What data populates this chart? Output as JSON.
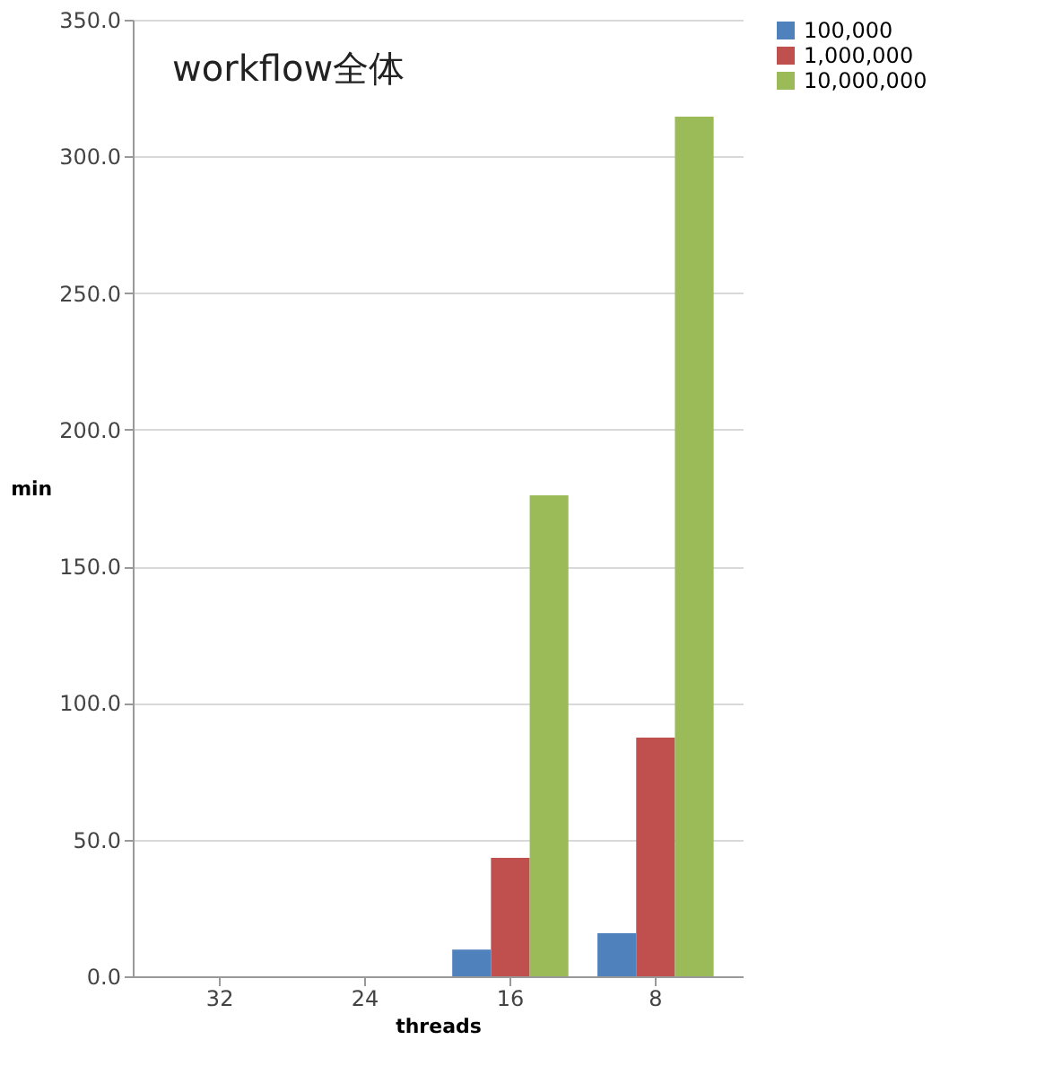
{
  "chart_data": {
    "type": "bar",
    "title": "workflow全体",
    "xlabel": "threads",
    "ylabel": "min",
    "categories": [
      "32",
      "24",
      "16",
      "8"
    ],
    "series": [
      {
        "name": "100,000",
        "color": "#4f81bd",
        "values": [
          0,
          0,
          9.8,
          15.8
        ]
      },
      {
        "name": "1,000,000",
        "color": "#c0504d",
        "values": [
          0,
          0,
          43.3,
          87.3
        ]
      },
      {
        "name": "10,000,000",
        "color": "#9bbb59",
        "values": [
          0,
          0,
          176,
          314.5
        ]
      }
    ],
    "ylim": [
      0,
      350
    ],
    "yticks": [
      {
        "value": 0,
        "label": "0.0"
      },
      {
        "value": 50,
        "label": "50.0"
      },
      {
        "value": 100,
        "label": "100.0"
      },
      {
        "value": 150,
        "label": "150.0"
      },
      {
        "value": 200,
        "label": "200.0"
      },
      {
        "value": 250,
        "label": "250.0"
      },
      {
        "value": 300,
        "label": "300.0"
      },
      {
        "value": 350,
        "label": "350.0"
      }
    ],
    "grid": "y",
    "legend": "right"
  }
}
